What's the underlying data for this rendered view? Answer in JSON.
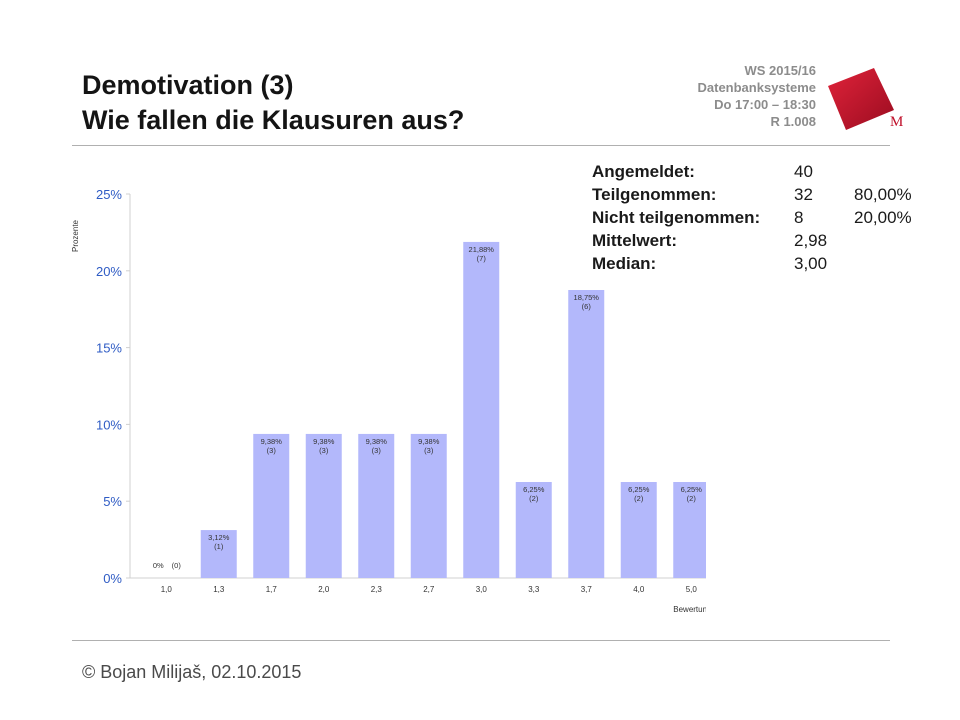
{
  "title": {
    "line1": "Demotivation (3)",
    "line2": "Wie fallen die Klausuren aus?"
  },
  "course": {
    "term": "WS 2015/16",
    "name": "Datenbanksysteme",
    "time": "Do 17:00 – 18:30",
    "room": "R 1.008"
  },
  "logo": {
    "letter": "M",
    "color": "#c0102a"
  },
  "footer": {
    "text": "© Bojan Milijaš, 02.10.2015"
  },
  "stats": {
    "rows": [
      {
        "label": "Angemeldet:",
        "value": "40",
        "percent": ""
      },
      {
        "label": "Teilgenommen:",
        "value": "32",
        "percent": "80,00%"
      },
      {
        "label": "Nicht teilgenommen:",
        "value": "8",
        "percent": "20,00%"
      },
      {
        "label": "Mittelwert:",
        "value": "2,98",
        "percent": ""
      },
      {
        "label": "Median:",
        "value": "3,00",
        "percent": ""
      }
    ]
  },
  "chart_data": {
    "type": "bar",
    "title": "",
    "xlabel": "Bewertung",
    "ylabel": "Prozente",
    "ylim": [
      0,
      25
    ],
    "yticks": [
      "0%",
      "5%",
      "10%",
      "15%",
      "20%",
      "25%"
    ],
    "categories": [
      "1,0",
      "1,3",
      "1,7",
      "2,0",
      "2,3",
      "2,7",
      "3,0",
      "3,3",
      "3,7",
      "4,0",
      "5,0"
    ],
    "values": [
      0,
      3.12,
      9.38,
      9.38,
      9.38,
      9.38,
      21.88,
      6.25,
      18.75,
      6.25,
      6.25
    ],
    "value_labels": [
      "0%",
      "3,12%",
      "9,38%",
      "9,38%",
      "9,38%",
      "9,38%",
      "21,88%",
      "6,25%",
      "18,75%",
      "6,25%",
      "6,25%"
    ],
    "count_labels": [
      "(0)",
      "(1)",
      "(3)",
      "(3)",
      "(3)",
      "(3)",
      "(7)",
      "(2)",
      "(6)",
      "(2)",
      "(2)"
    ],
    "grid": false,
    "bar_color": "#b3b8fb",
    "axis_color": "#2e5bc4"
  }
}
